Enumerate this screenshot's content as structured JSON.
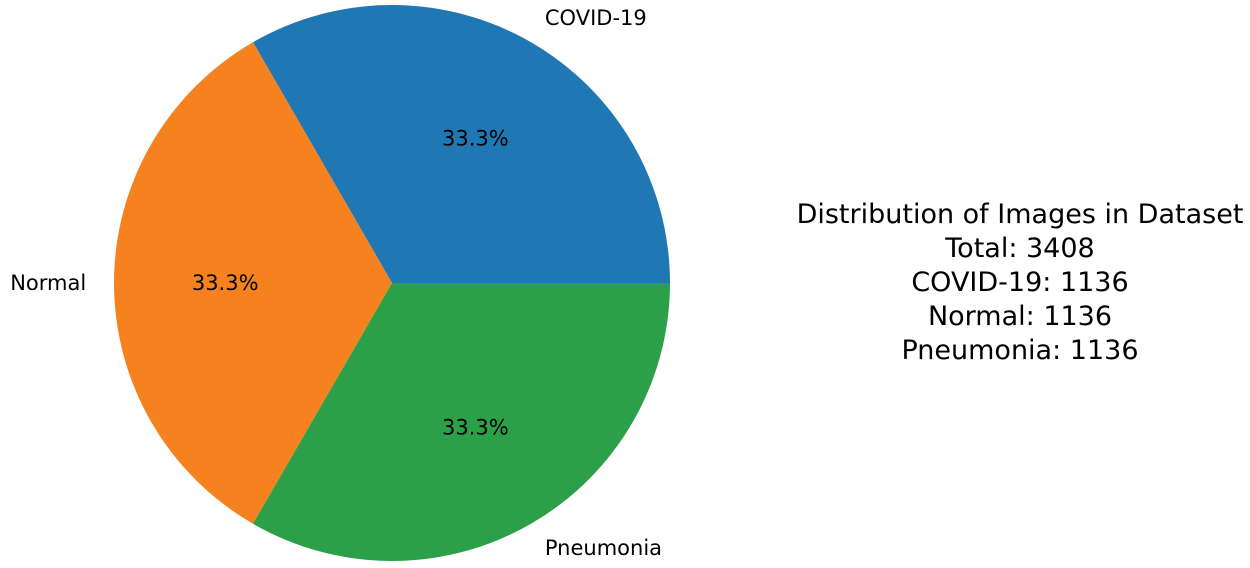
{
  "chart_data": {
    "type": "pie",
    "categories": [
      "COVID-19",
      "Normal",
      "Pneumonia"
    ],
    "values": [
      1136,
      1136,
      1136
    ],
    "percent_labels": [
      "33.3%",
      "33.3%",
      "33.3%"
    ],
    "colors": [
      "#1f77b4",
      "#f5821f",
      "#2ca048"
    ],
    "start_angle_deg": 0,
    "direction": "counterclockwise"
  },
  "info": {
    "title": "Distribution of Images in Dataset",
    "total": "Total: 3408",
    "covid": "COVID-19: 1136",
    "normal": "Normal: 1136",
    "pneumonia": "Pneumonia: 1136"
  }
}
